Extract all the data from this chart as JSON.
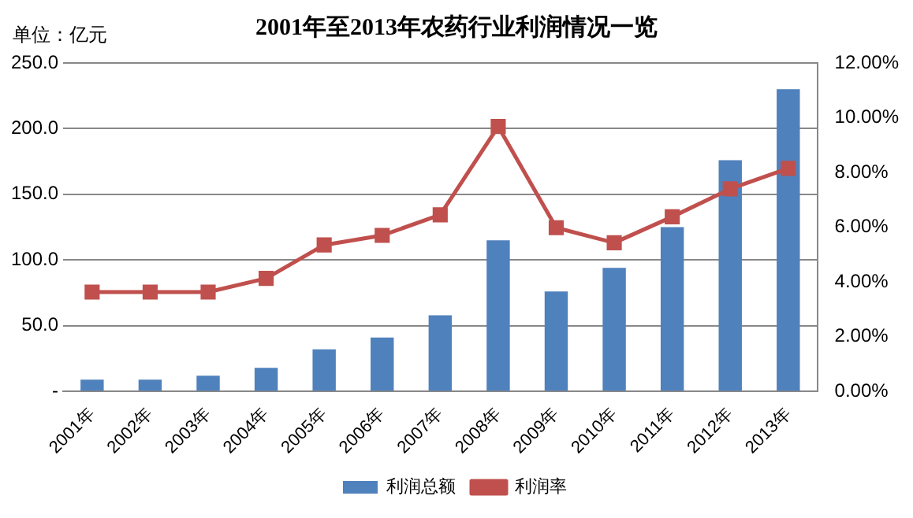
{
  "chart_data": {
    "type": "bar",
    "title": "2001年至2013年农药行业利润情况一览",
    "ylabel": "单位：亿元",
    "categories": [
      "2001年",
      "2002年",
      "2003年",
      "2004年",
      "2005年",
      "2006年",
      "2007年",
      "2008年",
      "2009年",
      "2010年",
      "2011年",
      "2012年",
      "2013年"
    ],
    "series": [
      {
        "name": "利润总额",
        "color": "#4f81bd",
        "values": [
          9,
          9,
          12,
          18,
          32,
          41,
          58,
          115,
          76,
          94,
          125,
          176,
          230
        ]
      },
      {
        "name": "利润率",
        "type": "line",
        "axis": "y2",
        "color": "#c0504d",
        "marker": "square",
        "values": [
          3.63,
          3.63,
          3.63,
          4.13,
          5.35,
          5.7,
          6.45,
          9.68,
          5.98,
          5.43,
          6.38,
          7.4,
          8.15
        ]
      }
    ],
    "ylim": [
      0,
      250
    ],
    "yticks": [
      {
        "value": 0,
        "label": "-"
      },
      {
        "value": 50,
        "label": "50.0"
      },
      {
        "value": 100,
        "label": "100.0"
      },
      {
        "value": 150,
        "label": "150.0"
      },
      {
        "value": 200,
        "label": "200.0"
      },
      {
        "value": 250,
        "label": "250.0"
      }
    ],
    "y2lim": [
      0,
      12
    ],
    "y2ticks": [
      {
        "value": 0,
        "label": "0.00%"
      },
      {
        "value": 2,
        "label": "2.00%"
      },
      {
        "value": 4,
        "label": "4.00%"
      },
      {
        "value": 6,
        "label": "6.00%"
      },
      {
        "value": 8,
        "label": "8.00%"
      },
      {
        "value": 10,
        "label": "10.00%"
      },
      {
        "value": 12,
        "label": "12.00%"
      }
    ],
    "grid": "y",
    "legend": "bottom"
  }
}
